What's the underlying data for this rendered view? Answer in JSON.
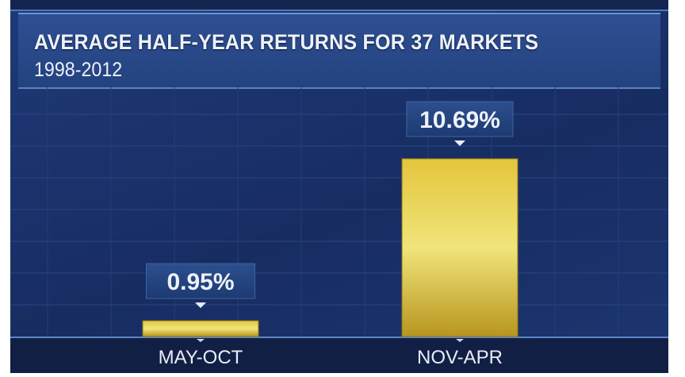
{
  "chart_data": {
    "type": "bar",
    "title": "AVERAGE HALF-YEAR RETURNS FOR 37 MARKETS",
    "subtitle": "1998-2012",
    "categories": [
      "MAY-OCT",
      "NOV-APR"
    ],
    "values": [
      0.95,
      10.69
    ],
    "data_labels": [
      "0.95%",
      "10.69%"
    ],
    "ylim": [
      0,
      14
    ],
    "grid": true,
    "colors": {
      "bar": "#e9d24a",
      "background": "#1b3368",
      "label_box": "#24457f",
      "text": "#eef2f8"
    }
  }
}
